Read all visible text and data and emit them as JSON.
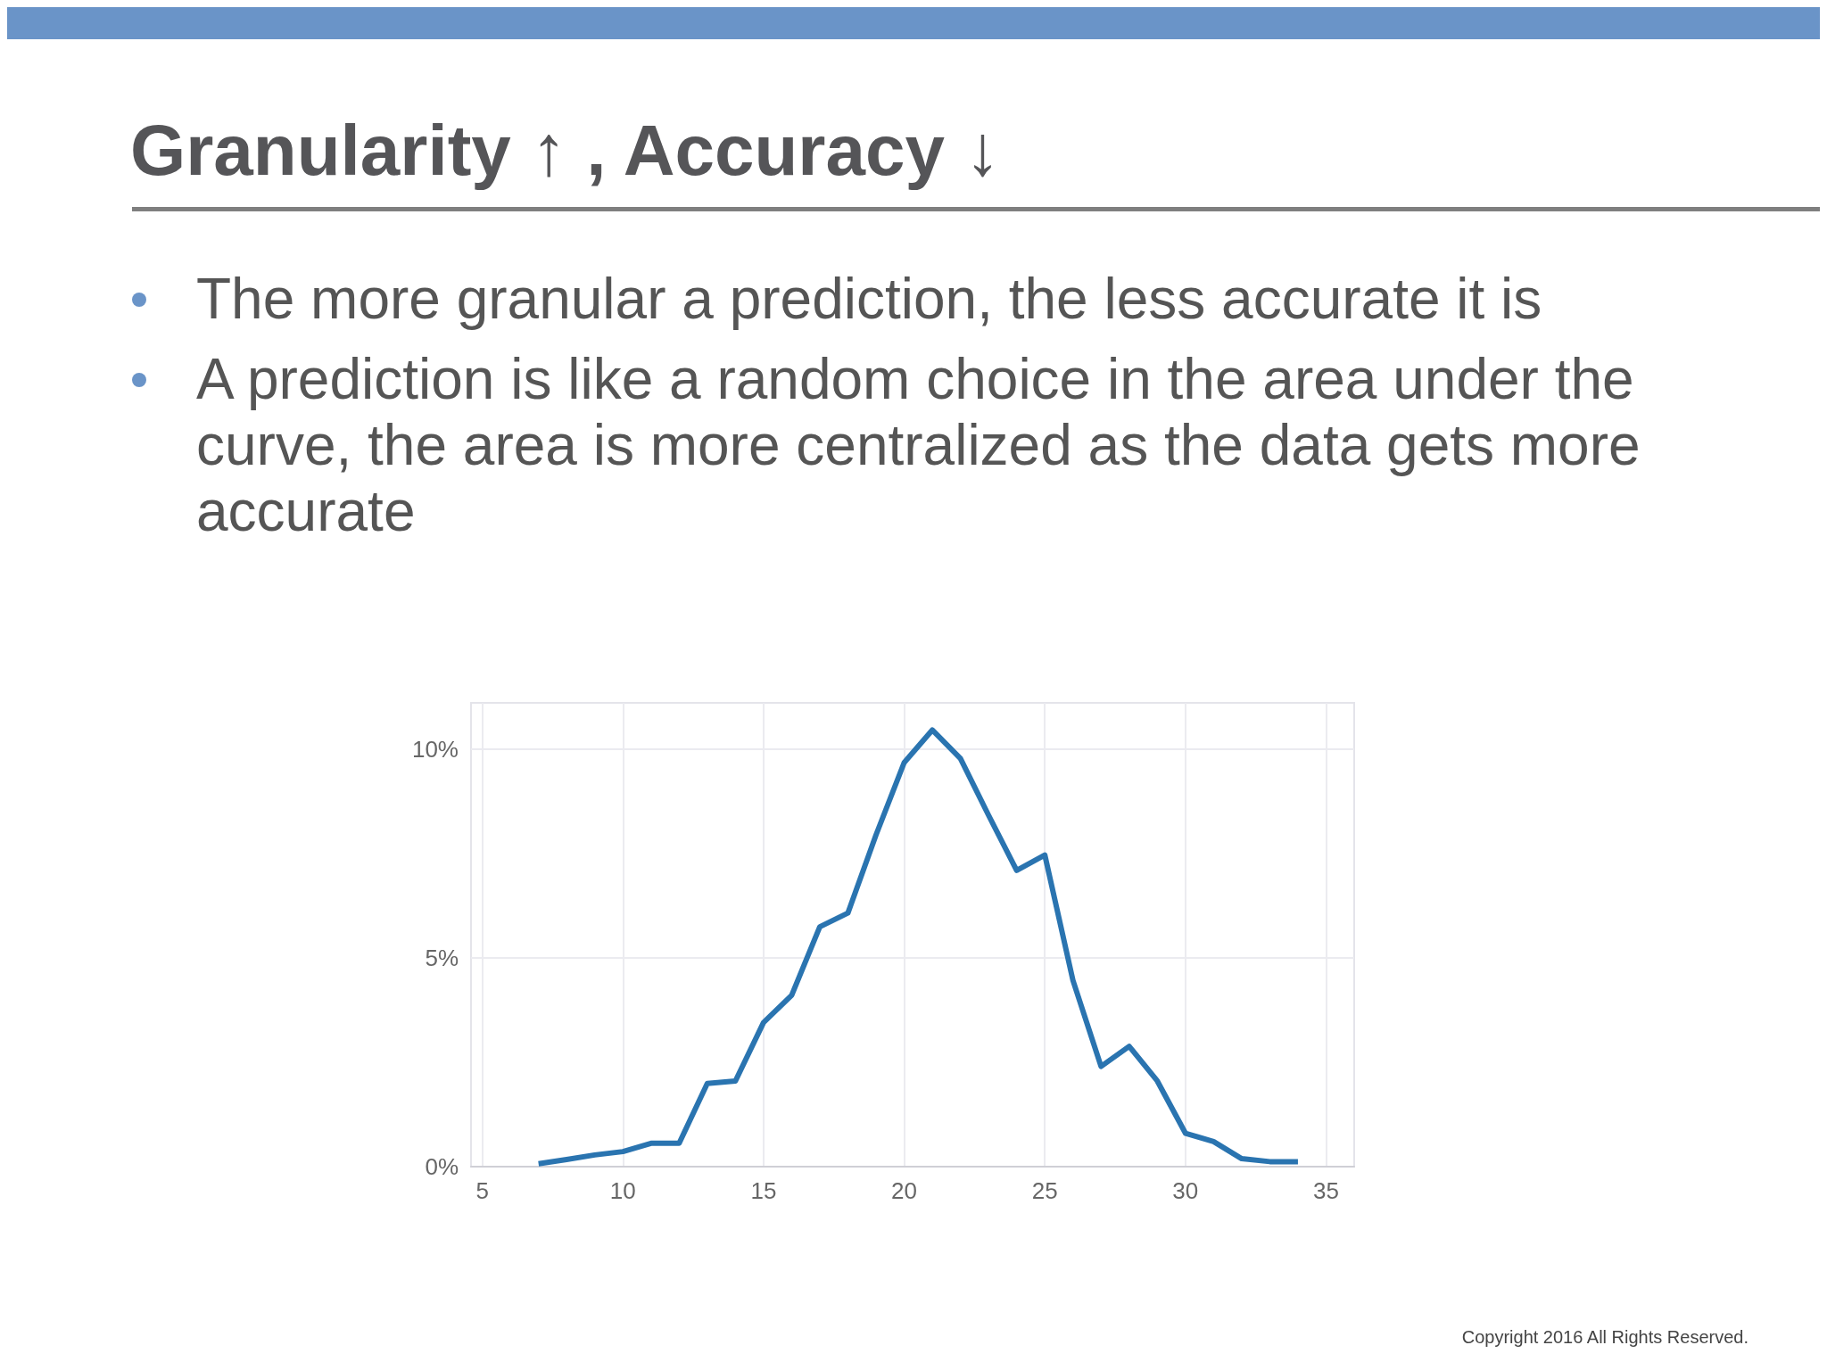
{
  "chart_data": {
    "type": "line",
    "title": "Granularity ↑ , Accuracy ↓",
    "annotations": [
      "The more granular a prediction, the less accurate it is",
      "A prediction is like a random choice in the area under the curve, the area is more centralized as the data gets more accurate",
      "Copyright 2016 All Rights Reserved."
    ],
    "x": [
      7,
      8,
      9,
      10,
      11,
      12,
      13,
      14,
      15,
      16,
      17,
      18,
      19,
      20,
      21,
      22,
      23,
      24,
      25,
      26,
      27,
      28,
      29,
      30,
      31,
      32,
      33,
      34
    ],
    "series": [
      {
        "color": "#2a74b0",
        "values": [
          0.07,
          0.17,
          0.28,
          0.36,
          0.56,
          0.56,
          1.99,
          2.05,
          3.45,
          4.1,
          5.74,
          6.07,
          7.94,
          9.67,
          10.45,
          9.77,
          8.41,
          7.09,
          7.46,
          4.46,
          2.4,
          2.88,
          2.05,
          0.8,
          0.6,
          0.19,
          0.12,
          0.12
        ]
      }
    ],
    "xlim": [
      4.6,
      36
    ],
    "ylim": [
      0,
      11.1
    ],
    "xticks": [
      5,
      10,
      15,
      20,
      25,
      30,
      35
    ],
    "yticks": [
      {
        "value": 0,
        "label": "0%"
      },
      {
        "value": 5,
        "label": "5%"
      },
      {
        "value": 10,
        "label": "10%"
      }
    ],
    "grid": true,
    "marker": "none"
  }
}
